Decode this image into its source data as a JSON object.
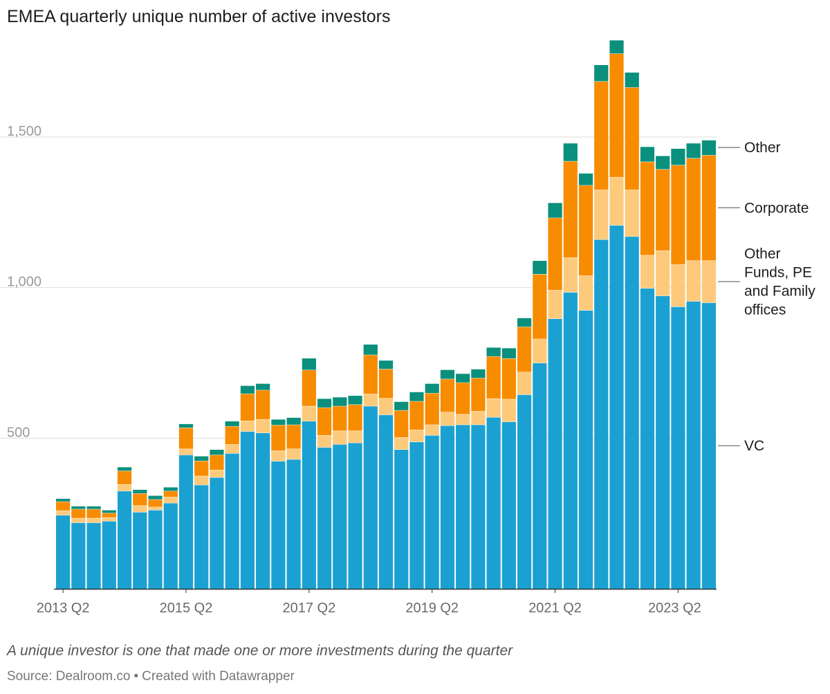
{
  "title": "EMEA quarterly unique number of active investors",
  "note": "A unique investor is one that made one or more investments during the quarter",
  "source": "Source: Dealroom.co",
  "credit": "Created with Datawrapper",
  "chart_data": {
    "type": "bar",
    "stacked": true,
    "ylim": [
      0,
      1850
    ],
    "yticks": [
      500,
      1000,
      1500
    ],
    "ytick_labels": [
      "500",
      "1,000",
      "1,500"
    ],
    "grid": true,
    "legend": "right, labels at end of series",
    "xtick_labels": [
      "2013 Q2",
      "2015 Q2",
      "2017 Q2",
      "2019 Q2",
      "2021 Q2",
      "2023 Q2"
    ],
    "categories": [
      "2013 Q2",
      "2013 Q3",
      "2013 Q4",
      "2014 Q1",
      "2014 Q2",
      "2014 Q3",
      "2014 Q4",
      "2015 Q1",
      "2015 Q2",
      "2015 Q3",
      "2015 Q4",
      "2016 Q1",
      "2016 Q2",
      "2016 Q3",
      "2016 Q4",
      "2017 Q1",
      "2017 Q2",
      "2017 Q3",
      "2017 Q4",
      "2018 Q1",
      "2018 Q2",
      "2018 Q3",
      "2018 Q4",
      "2019 Q1",
      "2019 Q2",
      "2019 Q3",
      "2019 Q4",
      "2020 Q1",
      "2020 Q2",
      "2020 Q3",
      "2020 Q4",
      "2021 Q1",
      "2021 Q2",
      "2021 Q3",
      "2021 Q4",
      "2022 Q1",
      "2022 Q2",
      "2022 Q3",
      "2022 Q4",
      "2023 Q1",
      "2023 Q2",
      "2023 Q3",
      "2023 Q4"
    ],
    "series": [
      {
        "name": "VC",
        "color": "#1ba1d1",
        "values": [
          245,
          220,
          220,
          225,
          325,
          255,
          262,
          285,
          445,
          345,
          370,
          450,
          523,
          518,
          424,
          430,
          557,
          470,
          480,
          485,
          607,
          578,
          463,
          488,
          510,
          542,
          545,
          545,
          570,
          555,
          645,
          750,
          897,
          985,
          925,
          1160,
          1207,
          1170,
          998,
          973,
          937,
          955,
          950
        ]
      },
      {
        "name": "Other Funds, PE and Family offices",
        "color": "#fdca7c",
        "values": [
          15,
          15,
          15,
          12,
          22,
          22,
          10,
          20,
          20,
          30,
          25,
          30,
          35,
          45,
          35,
          35,
          50,
          40,
          45,
          40,
          40,
          55,
          40,
          40,
          35,
          45,
          35,
          45,
          62,
          75,
          75,
          80,
          95,
          115,
          115,
          165,
          160,
          155,
          110,
          150,
          140,
          135,
          140
        ]
      },
      {
        "name": "Corporate",
        "color": "#f78c00",
        "values": [
          30,
          30,
          30,
          15,
          45,
          40,
          25,
          20,
          70,
          50,
          50,
          60,
          90,
          97,
          85,
          80,
          120,
          92,
          82,
          87,
          130,
          97,
          90,
          95,
          105,
          110,
          105,
          110,
          140,
          135,
          150,
          215,
          240,
          320,
          300,
          360,
          410,
          340,
          310,
          270,
          330,
          340,
          350
        ]
      },
      {
        "name": "Other",
        "color": "#0a907c",
        "values": [
          10,
          10,
          10,
          10,
          13,
          13,
          13,
          13,
          13,
          16,
          18,
          17,
          27,
          22,
          19,
          24,
          39,
          30,
          30,
          30,
          35,
          29,
          29,
          31,
          32,
          31,
          30,
          30,
          30,
          35,
          30,
          45,
          50,
          60,
          40,
          55,
          45,
          50,
          50,
          45,
          55,
          50,
          50
        ]
      }
    ]
  }
}
